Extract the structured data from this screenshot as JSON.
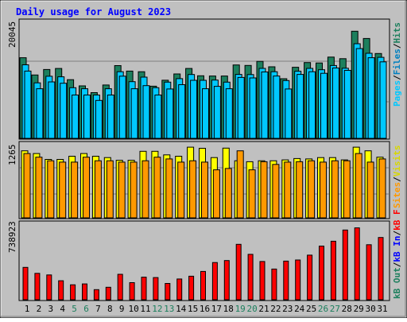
{
  "chart_data": {
    "type": "bar",
    "title": "Daily usage for August 2023",
    "categories": [
      "1",
      "2",
      "3",
      "4",
      "5",
      "6",
      "7",
      "8",
      "9",
      "10",
      "11",
      "12",
      "13",
      "14",
      "15",
      "16",
      "17",
      "18",
      "19",
      "20",
      "21",
      "22",
      "23",
      "24",
      "25",
      "26",
      "27",
      "28",
      "29",
      "30",
      "31"
    ],
    "weekend_days": [
      "5",
      "6",
      "12",
      "13",
      "19",
      "20",
      "26",
      "27"
    ],
    "panels": [
      {
        "name": "hits-files-pages",
        "max_label": "20045",
        "ylim": [
          0,
          20045
        ],
        "grid": true,
        "side_legend": [
          "Hits",
          "/",
          "Files",
          "/",
          "Pages"
        ],
        "series": [
          {
            "name": "Hits",
            "color": "#1c7f5d",
            "values": [
              14120,
              11100,
              12060,
              12240,
              10270,
              9190,
              8010,
              9340,
              12730,
              11770,
              11660,
              9130,
              10170,
              11280,
              12240,
              10960,
              10910,
              10910,
              12850,
              12760,
              13480,
              12530,
              10440,
              12450,
              13260,
              13190,
              14220,
              13950,
              18750,
              17480,
              14850
            ]
          },
          {
            "name": "Files",
            "color": "#00c8ff",
            "values": [
              12880,
              9710,
              10870,
              10770,
              8870,
              8690,
              7580,
              8690,
              11660,
              9920,
              10720,
              8870,
              9840,
              10460,
              11180,
              10160,
              10200,
              9840,
              11190,
              11170,
              12250,
              11670,
              10120,
              11750,
              12250,
              12020,
              12750,
              12280,
              16570,
              14890,
              14180
            ]
          },
          {
            "name": "Pages",
            "color": "#00c8ff",
            "values": [
              11770,
              8690,
              9890,
              9640,
              7580,
              7580,
              6640,
              7580,
              10880,
              8690,
              9230,
              7580,
              8640,
              9390,
              10160,
              8690,
              9100,
              8690,
              10660,
              10580,
              11630,
              10910,
              8640,
              11190,
              11670,
              11390,
              12320,
              11900,
              15720,
              14120,
              13390
            ]
          }
        ]
      },
      {
        "name": "visits-sites",
        "max_label": "1265",
        "ylim": [
          0,
          1265
        ],
        "grid": true,
        "side_legend": [
          "Visits",
          "/",
          "Sites"
        ],
        "series": [
          {
            "name": "Visits",
            "color": "#ffff00",
            "values": [
              1185,
              1137,
              1033,
              1033,
              1089,
              1137,
              1089,
              1065,
              1017,
              1017,
              1177,
              1177,
              1113,
              1089,
              1249,
              1230,
              1065,
              1233,
              1009,
              993,
              1009,
              1009,
              1025,
              1049,
              1041,
              1065,
              1065,
              1025,
              1249,
              1185,
              1073
            ]
          },
          {
            "name": "Sites",
            "color": "#ff9900",
            "values": [
              1137,
              1073,
              1009,
              985,
              985,
              1073,
              1009,
              1009,
              985,
              985,
              1009,
              1073,
              1041,
              985,
              1009,
              985,
              849,
              873,
              1185,
              849,
              993,
              945,
              985,
              993,
              1009,
              985,
              1009,
              1009,
              1137,
              985,
              1041
            ]
          }
        ]
      },
      {
        "name": "kbf-kbin-kbout",
        "max_label": "738923",
        "ylim": [
          0,
          738923
        ],
        "grid": false,
        "side_legend": [
          "kB F",
          "/",
          "kB In",
          "/",
          "kB Out"
        ],
        "series": [
          {
            "name": "kB F",
            "color": "#ff0000",
            "values": [
              323000,
              264000,
              248000,
              190000,
              149000,
              158000,
              101000,
              125000,
              254000,
              171000,
              226000,
              222000,
              163000,
              207000,
              235000,
              283000,
              372000,
              392000,
              554000,
              454000,
              382000,
              307000,
              386000,
              397000,
              446000,
              536000,
              585000,
              697000,
              718000,
              550000,
              622000
            ]
          }
        ]
      }
    ]
  }
}
